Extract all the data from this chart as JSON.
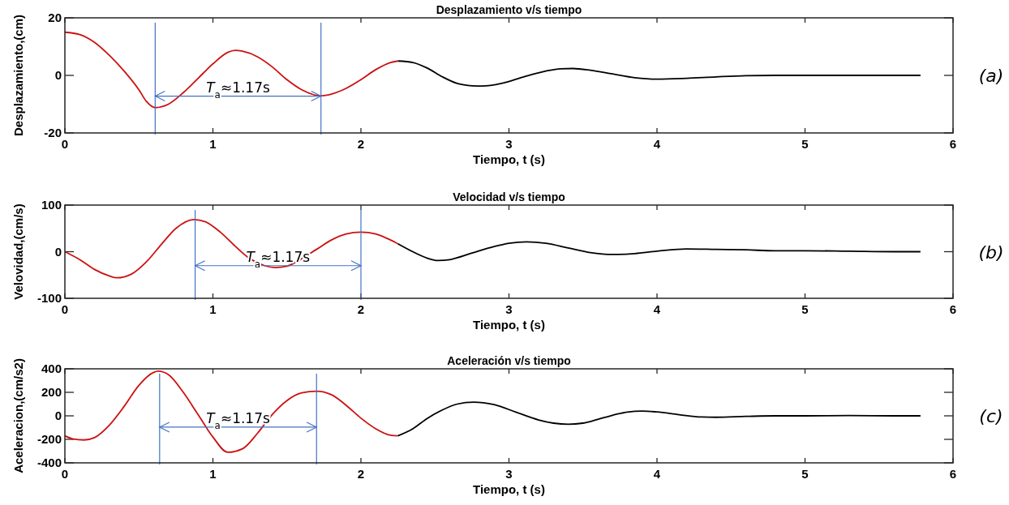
{
  "chart_data": [
    {
      "type": "line",
      "title": "Desplazamiento v/s tiempo",
      "xlabel": "Tiempo, t (s)",
      "ylabel": "Desplazamiento,(cm)",
      "xlim": [
        0,
        6
      ],
      "xticks": [
        0,
        1,
        2,
        3,
        4,
        5,
        6
      ],
      "ylim": [
        -20,
        20
      ],
      "yticks": [
        -20,
        0,
        20
      ],
      "series": [
        {
          "color": "#cc1111",
          "x": [
            0,
            0.1,
            0.2,
            0.3,
            0.4,
            0.5,
            0.55,
            0.61,
            0.7,
            0.8,
            0.9,
            1.0,
            1.1,
            1.15,
            1.2,
            1.3,
            1.4,
            1.5,
            1.6,
            1.73,
            1.8,
            1.9,
            2.0,
            2.1,
            2.2,
            2.25
          ],
          "values": [
            15,
            14.2,
            11.5,
            7,
            1.5,
            -5,
            -9,
            -11.2,
            -10,
            -6,
            -1,
            4,
            8,
            8.7,
            8.4,
            6.5,
            3,
            -1.5,
            -5,
            -7.1,
            -6.5,
            -4.5,
            -1.5,
            2,
            4.5,
            5
          ]
        },
        {
          "color": "#000000",
          "x": [
            2.25,
            2.35,
            2.45,
            2.55,
            2.65,
            2.75,
            2.82,
            2.95,
            3.1,
            3.25,
            3.35,
            3.43,
            3.55,
            3.7,
            3.85,
            4.0,
            4.2,
            4.4,
            4.6,
            4.8,
            5.0,
            5.4,
            5.78
          ],
          "values": [
            5,
            4.5,
            2.5,
            -0.5,
            -2.8,
            -3.6,
            -3.7,
            -2.8,
            -0.5,
            1.5,
            2.3,
            2.4,
            1.8,
            0.5,
            -0.8,
            -1.3,
            -1,
            -0.5,
            -0.1,
            0,
            0,
            0,
            0
          ]
        }
      ],
      "ref_lines": [
        {
          "axis": "x",
          "value": 0.61,
          "color": "#4472c4"
        },
        {
          "axis": "x",
          "value": 1.73,
          "color": "#4472c4"
        }
      ],
      "annotations": [
        "T$_{a}$≈1.17s",
        "(a)"
      ]
    },
    {
      "type": "line",
      "title": "Velocidad v/s tiempo",
      "xlabel": "Tiempo, t (s)",
      "ylabel": "Velovidad,(cm/s)",
      "xlim": [
        0,
        6
      ],
      "xticks": [
        0,
        1,
        2,
        3,
        4,
        5,
        6
      ],
      "ylim": [
        -100,
        100
      ],
      "yticks": [
        -100,
        0,
        100
      ],
      "series": [
        {
          "color": "#cc1111",
          "x": [
            0,
            0.1,
            0.2,
            0.3,
            0.35,
            0.45,
            0.55,
            0.65,
            0.75,
            0.87,
            0.95,
            1.05,
            1.15,
            1.25,
            1.35,
            1.42,
            1.5,
            1.6,
            1.7,
            1.8,
            1.9,
            2.0,
            2.1,
            2.2,
            2.25
          ],
          "values": [
            0,
            -17,
            -38,
            -52,
            -56,
            -48,
            -22,
            15,
            50,
            69,
            64,
            42,
            12,
            -15,
            -30,
            -34,
            -31,
            -15,
            5,
            25,
            38,
            42,
            38,
            25,
            17
          ]
        },
        {
          "color": "#000000",
          "x": [
            2.25,
            2.35,
            2.45,
            2.52,
            2.6,
            2.75,
            2.9,
            3.0,
            3.12,
            3.25,
            3.4,
            3.55,
            3.7,
            3.85,
            4.0,
            4.2,
            4.4,
            4.6,
            4.8,
            5.0,
            5.3,
            5.6,
            5.78
          ],
          "values": [
            17,
            0,
            -14,
            -19,
            -17,
            -3,
            11,
            18,
            21,
            18,
            8,
            -2,
            -6,
            -4,
            1,
            6,
            5,
            4,
            2,
            2,
            1,
            0,
            0
          ]
        }
      ],
      "ref_lines": [
        {
          "axis": "x",
          "value": 0.88,
          "color": "#4472c4"
        },
        {
          "axis": "x",
          "value": 2.0,
          "color": "#4472c4"
        }
      ],
      "annotations": [
        "T$_{a}$≈1.17s",
        "(b)"
      ]
    },
    {
      "type": "line",
      "title": "Aceleración v/s tiempo",
      "xlabel": "Tiempo, t (s)",
      "ylabel": "Aceleracion,(cm/s2)",
      "xlim": [
        0,
        6
      ],
      "xticks": [
        0,
        1,
        2,
        3,
        4,
        5,
        6
      ],
      "ylim": [
        -400,
        400
      ],
      "yticks": [
        -400,
        -200,
        0,
        200,
        400
      ],
      "series": [
        {
          "color": "#cc1111",
          "x": [
            0,
            0.05,
            0.13,
            0.2,
            0.3,
            0.4,
            0.5,
            0.6,
            0.63,
            0.7,
            0.8,
            0.9,
            1.0,
            1.1,
            1.2,
            1.3,
            1.4,
            1.5,
            1.6,
            1.7,
            1.8,
            1.9,
            2.0,
            2.1,
            2.2,
            2.25
          ],
          "values": [
            -170,
            -195,
            -205,
            -185,
            -80,
            80,
            260,
            370,
            380,
            350,
            200,
            10,
            -180,
            -310,
            -280,
            -150,
            10,
            130,
            195,
            210,
            180,
            90,
            -20,
            -110,
            -165,
            -170
          ]
        },
        {
          "color": "#000000",
          "x": [
            2.25,
            2.35,
            2.45,
            2.55,
            2.65,
            2.76,
            2.9,
            3.05,
            3.2,
            3.3,
            3.4,
            3.5,
            3.6,
            3.7,
            3.8,
            3.9,
            4.0,
            4.15,
            4.3,
            4.4,
            4.6,
            4.8,
            5.0,
            5.3,
            5.6,
            5.78
          ],
          "values": [
            -170,
            -110,
            -20,
            50,
            100,
            117,
            95,
            30,
            -35,
            -62,
            -72,
            -62,
            -30,
            5,
            32,
            41,
            33,
            10,
            -10,
            -12,
            -5,
            0,
            0,
            3,
            0,
            0
          ]
        }
      ],
      "ref_lines": [
        {
          "axis": "x",
          "value": 0.64,
          "color": "#4472c4"
        },
        {
          "axis": "x",
          "value": 1.7,
          "color": "#4472c4"
        }
      ],
      "annotations": [
        "T$_{a}$≈1.17s",
        "(c)"
      ]
    }
  ]
}
